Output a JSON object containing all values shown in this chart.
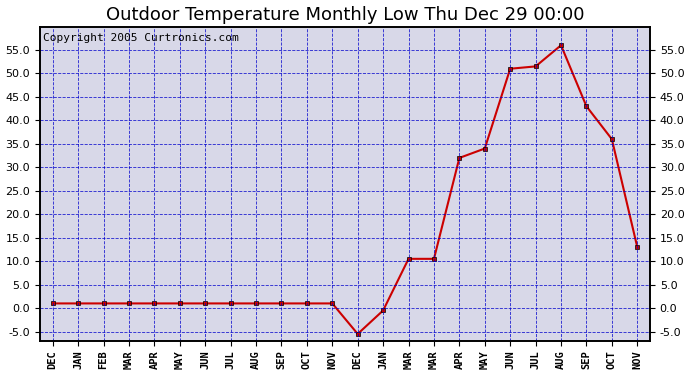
{
  "title": "Outdoor Temperature Monthly Low Thu Dec 29 00:00",
  "copyright": "Copyright 2005 Curtronics.com",
  "x_labels": [
    "DEC",
    "JAN",
    "FEB",
    "MAR",
    "APR",
    "MAY",
    "JUN",
    "JUL",
    "AUG",
    "SEP",
    "OCT",
    "NOV",
    "DEC",
    "JAN",
    "MAR",
    "MAR",
    "APR",
    "MAY",
    "JUN",
    "JUL",
    "AUG",
    "SEP",
    "OCT",
    "NOV"
  ],
  "y_values": [
    1.0,
    1.0,
    1.0,
    1.0,
    1.0,
    1.0,
    1.0,
    1.0,
    1.0,
    1.0,
    1.0,
    1.0,
    -5.5,
    -0.5,
    10.5,
    10.5,
    32.0,
    34.0,
    51.0,
    51.5,
    56.0,
    43.0,
    36.0,
    13.0
  ],
  "ylim": [
    -7.0,
    60.0
  ],
  "yticks": [
    -5.0,
    0.0,
    5.0,
    10.0,
    15.0,
    20.0,
    25.0,
    30.0,
    35.0,
    40.0,
    45.0,
    50.0,
    55.0
  ],
  "line_color": "#cc0000",
  "marker_color": "#cc0000",
  "marker_style": "s",
  "grid_color": "#0000cc",
  "background_color": "#d8d8e8",
  "title_fontsize": 13,
  "copyright_fontsize": 8
}
